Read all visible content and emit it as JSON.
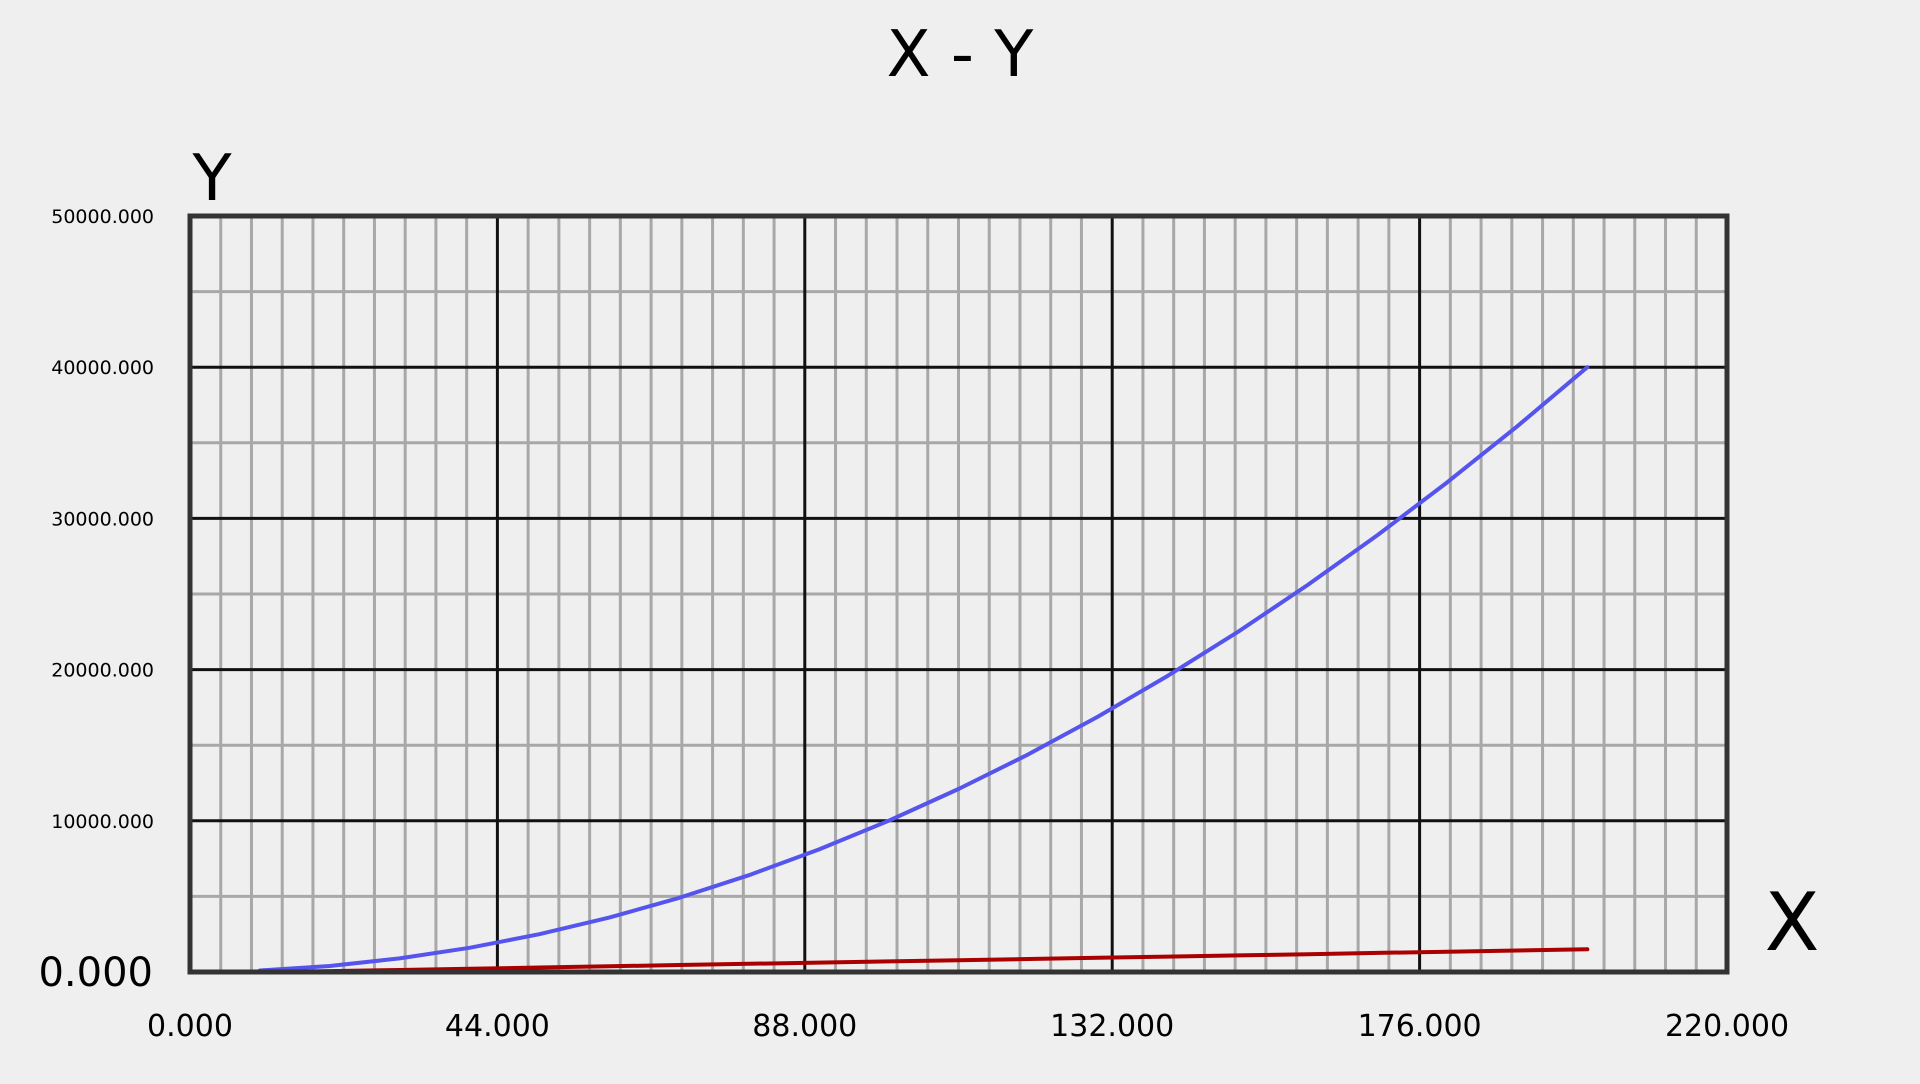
{
  "chart_data": {
    "type": "line",
    "title": "X - Y",
    "xlabel": "X",
    "ylabel": "Y",
    "xlim": [
      0,
      220
    ],
    "ylim": [
      0,
      50000
    ],
    "x_ticks": [
      "0.000",
      "44.000",
      "88.000",
      "132.000",
      "176.000",
      "220.000"
    ],
    "y_ticks": [
      "0.000",
      "10000.000",
      "20000.000",
      "30000.000",
      "40000.000",
      "50000.000"
    ],
    "grid": true,
    "series": [
      {
        "color": "#5555ee",
        "x": [
          10,
          20,
          30,
          40,
          50,
          60,
          70,
          80,
          90,
          100,
          110,
          120,
          130,
          140,
          150,
          160,
          170,
          180,
          190,
          200
        ],
        "y": [
          100,
          400,
          900,
          1600,
          2500,
          3600,
          4900,
          6400,
          8100,
          10000,
          12100,
          14400,
          16900,
          19600,
          22500,
          25600,
          28900,
          32400,
          36100,
          40000
        ]
      },
      {
        "color": "#aa0000",
        "x": [
          10,
          20,
          30,
          40,
          50,
          60,
          70,
          80,
          90,
          100,
          110,
          120,
          130,
          140,
          150,
          160,
          170,
          180,
          190,
          200
        ],
        "y": [
          0,
          60,
          130,
          210,
          300,
          380,
          460,
          540,
          620,
          700,
          780,
          860,
          940,
          1020,
          1100,
          1180,
          1260,
          1340,
          1420,
          1500
        ]
      }
    ]
  }
}
